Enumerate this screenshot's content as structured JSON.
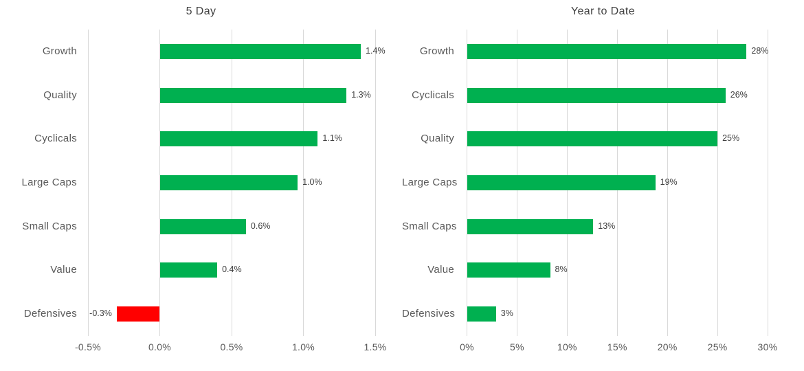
{
  "colors": {
    "positive_bar": "#00B050",
    "negative_bar": "#FF0000",
    "gridline": "#D9D9D9",
    "axis_text": "#595959",
    "title_text": "#404040",
    "data_label_text": "#404040",
    "background": "#FFFFFF"
  },
  "chart_data": [
    {
      "type": "bar",
      "orientation": "horizontal",
      "title": "5 Day",
      "categories": [
        "Growth",
        "Quality",
        "Cyclicals",
        "Large Caps",
        "Small Caps",
        "Value",
        "Defensives"
      ],
      "values": [
        1.4,
        1.3,
        1.1,
        0.96,
        0.6,
        0.4,
        -0.3
      ],
      "value_labels": [
        "1.4%",
        "1.3%",
        "1.1%",
        "1.0%",
        "0.6%",
        "0.4%",
        "-0.3%"
      ],
      "xlim": [
        -0.5,
        1.5
      ],
      "xticks": [
        -0.5,
        0,
        0.5,
        1.0,
        1.5
      ],
      "xtick_labels": [
        "-0.5%",
        "0.0%",
        "0.5%",
        "1.0%",
        "1.5%"
      ],
      "grid": true,
      "legend": false
    },
    {
      "type": "bar",
      "orientation": "horizontal",
      "title": "Year to Date",
      "categories": [
        "Growth",
        "Cyclicals",
        "Quality",
        "Large Caps",
        "Small Caps",
        "Value",
        "Defensives"
      ],
      "values": [
        27.9,
        25.8,
        25.0,
        18.8,
        12.6,
        8.3,
        2.9
      ],
      "value_labels": [
        "28%",
        "26%",
        "25%",
        "19%",
        "13%",
        "8%",
        "3%"
      ],
      "xlim": [
        0,
        30
      ],
      "xticks": [
        0,
        5,
        10,
        15,
        20,
        25,
        30
      ],
      "xtick_labels": [
        "0%",
        "5%",
        "10%",
        "15%",
        "20%",
        "25%",
        "30%"
      ],
      "grid": true,
      "legend": false
    }
  ]
}
